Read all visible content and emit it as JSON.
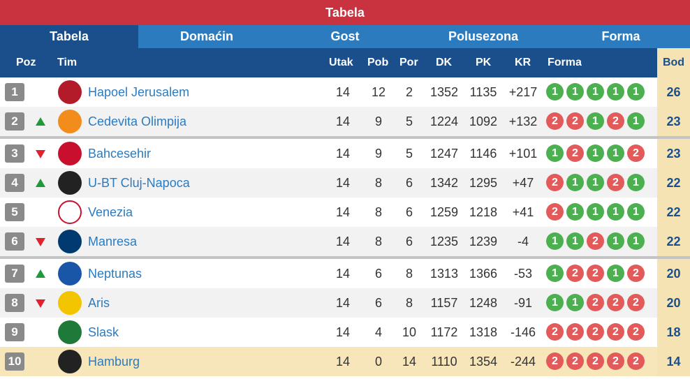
{
  "title": "Tabela",
  "tabs": [
    {
      "label": "Tabela",
      "active": true
    },
    {
      "label": "Domaćin",
      "active": false
    },
    {
      "label": "Gost",
      "active": false
    },
    {
      "label": "Polusezona",
      "active": false
    },
    {
      "label": "Forma",
      "active": false
    }
  ],
  "headers": {
    "poz": "Poz",
    "tim": "Tim",
    "utak": "Utak",
    "pob": "Pob",
    "por": "Por",
    "dk": "DK",
    "pk": "PK",
    "kr": "KR",
    "forma": "Forma",
    "bod": "Bod"
  },
  "colors": {
    "win": "#4caf50",
    "loss": "#e35a5a",
    "accent": "#1a4f8b",
    "title": "#c9323f",
    "up": "#1e9a3a",
    "down": "#e3202e"
  },
  "rows": [
    {
      "pos": "1",
      "move": "",
      "team": "Hapoel Jerusalem",
      "logo_icon": "hapoel-jerusalem-logo-icon",
      "utak": "14",
      "pob": "12",
      "por": "2",
      "dk": "1352",
      "pk": "1135",
      "kr": "+217",
      "form": [
        "1",
        "1",
        "1",
        "1",
        "1"
      ],
      "bod": "26"
    },
    {
      "pos": "2",
      "move": "up",
      "team": "Cedevita Olimpija",
      "logo_icon": "cedevita-olimpija-logo-icon",
      "utak": "14",
      "pob": "9",
      "por": "5",
      "dk": "1224",
      "pk": "1092",
      "kr": "+132",
      "form": [
        "2",
        "2",
        "1",
        "2",
        "1"
      ],
      "bod": "23"
    },
    {
      "pos": "3",
      "move": "down",
      "team": "Bahcesehir",
      "logo_icon": "bahcesehir-logo-icon",
      "utak": "14",
      "pob": "9",
      "por": "5",
      "dk": "1247",
      "pk": "1146",
      "kr": "+101",
      "form": [
        "1",
        "2",
        "1",
        "1",
        "2"
      ],
      "bod": "23"
    },
    {
      "pos": "4",
      "move": "up",
      "team": "U-BT Cluj-Napoca",
      "logo_icon": "u-bt-cluj-logo-icon",
      "utak": "14",
      "pob": "8",
      "por": "6",
      "dk": "1342",
      "pk": "1295",
      "kr": "+47",
      "form": [
        "2",
        "1",
        "1",
        "2",
        "1"
      ],
      "bod": "22"
    },
    {
      "pos": "5",
      "move": "",
      "team": "Venezia",
      "logo_icon": "venezia-logo-icon",
      "utak": "14",
      "pob": "8",
      "por": "6",
      "dk": "1259",
      "pk": "1218",
      "kr": "+41",
      "form": [
        "2",
        "1",
        "1",
        "1",
        "1"
      ],
      "bod": "22"
    },
    {
      "pos": "6",
      "move": "down",
      "team": "Manresa",
      "logo_icon": "manresa-logo-icon",
      "utak": "14",
      "pob": "8",
      "por": "6",
      "dk": "1235",
      "pk": "1239",
      "kr": "-4",
      "form": [
        "1",
        "1",
        "2",
        "1",
        "1"
      ],
      "bod": "22"
    },
    {
      "pos": "7",
      "move": "up",
      "team": "Neptunas",
      "logo_icon": "neptunas-logo-icon",
      "utak": "14",
      "pob": "6",
      "por": "8",
      "dk": "1313",
      "pk": "1366",
      "kr": "-53",
      "form": [
        "1",
        "2",
        "2",
        "1",
        "2"
      ],
      "bod": "20"
    },
    {
      "pos": "8",
      "move": "down",
      "team": "Aris",
      "logo_icon": "aris-logo-icon",
      "utak": "14",
      "pob": "6",
      "por": "8",
      "dk": "1157",
      "pk": "1248",
      "kr": "-91",
      "form": [
        "1",
        "1",
        "2",
        "2",
        "2"
      ],
      "bod": "20"
    },
    {
      "pos": "9",
      "move": "",
      "team": "Slask",
      "logo_icon": "slask-logo-icon",
      "utak": "14",
      "pob": "4",
      "por": "10",
      "dk": "1172",
      "pk": "1318",
      "kr": "-146",
      "form": [
        "2",
        "2",
        "2",
        "2",
        "2"
      ],
      "bod": "18"
    },
    {
      "pos": "10",
      "move": "",
      "team": "Hamburg",
      "logo_icon": "hamburg-logo-icon",
      "utak": "14",
      "pob": "0",
      "por": "14",
      "dk": "1110",
      "pk": "1354",
      "kr": "-244",
      "form": [
        "2",
        "2",
        "2",
        "2",
        "2"
      ],
      "bod": "14",
      "highlight": true
    }
  ]
}
